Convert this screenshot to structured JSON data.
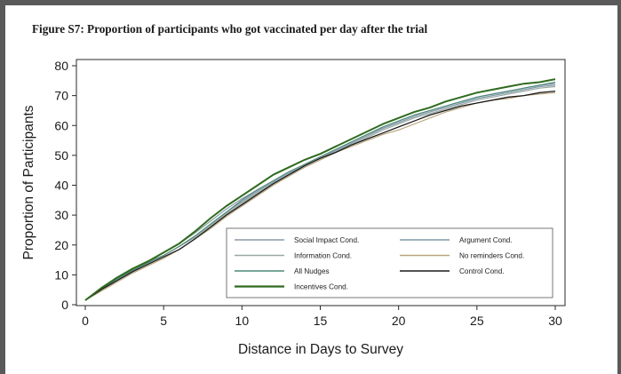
{
  "figure": {
    "title": "Figure S7: Proportion of participants who got vaccinated per day after the trial"
  },
  "chart_data": {
    "type": "line",
    "title": "Figure S7: Proportion of participants who got vaccinated per day after the trial",
    "xlabel": "Distance in Days to Survey",
    "ylabel": "Proportion of Participants",
    "xlim": [
      0,
      30
    ],
    "ylim": [
      0,
      80
    ],
    "xticks": [
      "0",
      "5",
      "10",
      "15",
      "20",
      "25",
      "30"
    ],
    "yticks": [
      "0",
      "10",
      "20",
      "30",
      "40",
      "50",
      "60",
      "70",
      "80"
    ],
    "grid": false,
    "legend_position": "bottom-right",
    "x": [
      0,
      1,
      2,
      3,
      4,
      5,
      6,
      7,
      8,
      9,
      10,
      11,
      12,
      13,
      14,
      15,
      16,
      17,
      18,
      19,
      20,
      21,
      22,
      23,
      24,
      25,
      26,
      27,
      28,
      29,
      30
    ],
    "series": [
      {
        "name": "Social Impact Cond.",
        "color": "#8a9ba8",
        "width": 1.2,
        "values": [
          1.5,
          5.5,
          9,
          12,
          14.5,
          17.5,
          20.5,
          24,
          28,
          32,
          35.5,
          38.5,
          41.5,
          44.5,
          47,
          49.5,
          52,
          54.5,
          57,
          59.5,
          61.5,
          63.5,
          65,
          66.5,
          68,
          69.5,
          70.5,
          71.5,
          72.5,
          73.5,
          74
        ]
      },
      {
        "name": "Argument Cond.",
        "color": "#7f98a8",
        "width": 1.2,
        "values": [
          1.5,
          5,
          8.5,
          11.5,
          14,
          16.5,
          19.5,
          23,
          27,
          31,
          34.5,
          38,
          41,
          44,
          46.5,
          49,
          51.5,
          54,
          56.5,
          59,
          61,
          63,
          64.5,
          66,
          67.5,
          69,
          70,
          71,
          72,
          73,
          73.5
        ]
      },
      {
        "name": "Information Cond.",
        "color": "#9aa8a2",
        "width": 1.2,
        "values": [
          1.5,
          5,
          8,
          11,
          14.5,
          16.5,
          19.5,
          22.5,
          26.5,
          30.5,
          34,
          37.5,
          40.5,
          43.5,
          46,
          48.5,
          51,
          53.5,
          56,
          58.5,
          60.5,
          62.5,
          64,
          65.5,
          67,
          68.5,
          69.5,
          70.5,
          71.5,
          72.5,
          73
        ]
      },
      {
        "name": "No reminders Cond.",
        "color": "#b8a57a",
        "width": 1.1,
        "values": [
          1.5,
          4.5,
          7.5,
          10.5,
          13,
          15.5,
          18.5,
          22,
          25.5,
          29.5,
          33,
          36.5,
          40,
          43,
          46,
          48.5,
          51,
          53,
          55,
          57,
          58.5,
          60.5,
          62.5,
          64.5,
          66,
          67.5,
          68.5,
          69,
          70,
          70.5,
          71
        ]
      },
      {
        "name": "All Nudges",
        "color": "#4f8a7a",
        "width": 1.2,
        "values": [
          1.5,
          5,
          8.5,
          11.5,
          14,
          16.5,
          19.5,
          23,
          27,
          31,
          35,
          38.5,
          41.5,
          44.5,
          47,
          49.5,
          52,
          54.5,
          57,
          59.5,
          61.5,
          63.5,
          65,
          66.5,
          68,
          69.5,
          70.5,
          71.5,
          72.5,
          73.5,
          74.5
        ]
      },
      {
        "name": "Control Cond.",
        "color": "#1a1a1a",
        "width": 1.3,
        "values": [
          1.5,
          5,
          8,
          11,
          13.5,
          16,
          18.5,
          22,
          26,
          30,
          33.5,
          37,
          40.5,
          43.5,
          46.5,
          49,
          51,
          53.5,
          55.5,
          57.5,
          59.5,
          61.5,
          63.5,
          65,
          66.5,
          67.5,
          68.5,
          69.5,
          70,
          71,
          71.5
        ]
      },
      {
        "name": "Incentives Cond.",
        "color": "#2e6b1e",
        "width": 2.0,
        "values": [
          1.5,
          5.5,
          9,
          12,
          14.5,
          17.5,
          20.5,
          24.5,
          29,
          33,
          36.5,
          40,
          43.5,
          46,
          48.5,
          50.5,
          53,
          55.5,
          58,
          60.5,
          62.5,
          64.5,
          66,
          68,
          69.5,
          71,
          72,
          73,
          74,
          74.5,
          75.5
        ]
      }
    ]
  }
}
